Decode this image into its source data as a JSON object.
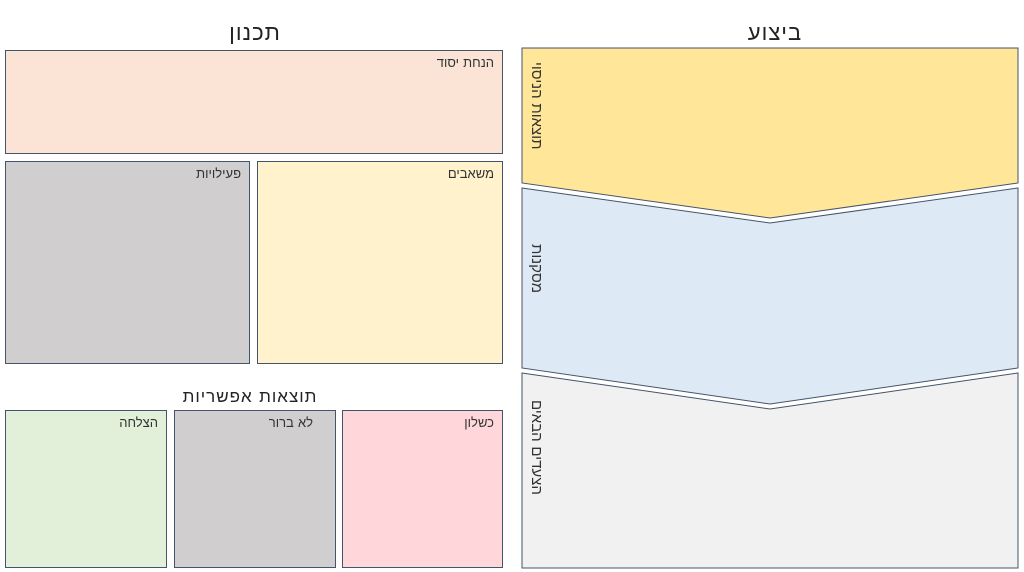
{
  "planning": {
    "title": "תכנון",
    "assumption": {
      "label": "הנחת יסוד",
      "color": "#fbe4d5"
    },
    "resources": {
      "label": "משאבים",
      "color": "#fff2cc"
    },
    "activities": {
      "label": "פעילויות",
      "color": "#d0cece"
    }
  },
  "outcomes": {
    "title": "תוצאות אפשריות",
    "failure": {
      "label": "כשלון",
      "color": "#ffd7db"
    },
    "unclear": {
      "label": "לא ברור",
      "color": "#d0cece"
    },
    "success": {
      "label": "הצלחה",
      "color": "#e2efd9"
    }
  },
  "execution": {
    "title": "ביצוע",
    "results": {
      "label": "תוצאות הניסוי",
      "color": "#ffe699"
    },
    "conclusions": {
      "label": "מסקנות",
      "color": "#dee9f6"
    },
    "next_steps": {
      "label": "הצעדים הבאים",
      "color": "#f1f1f1"
    }
  },
  "border_color": "#44546a"
}
